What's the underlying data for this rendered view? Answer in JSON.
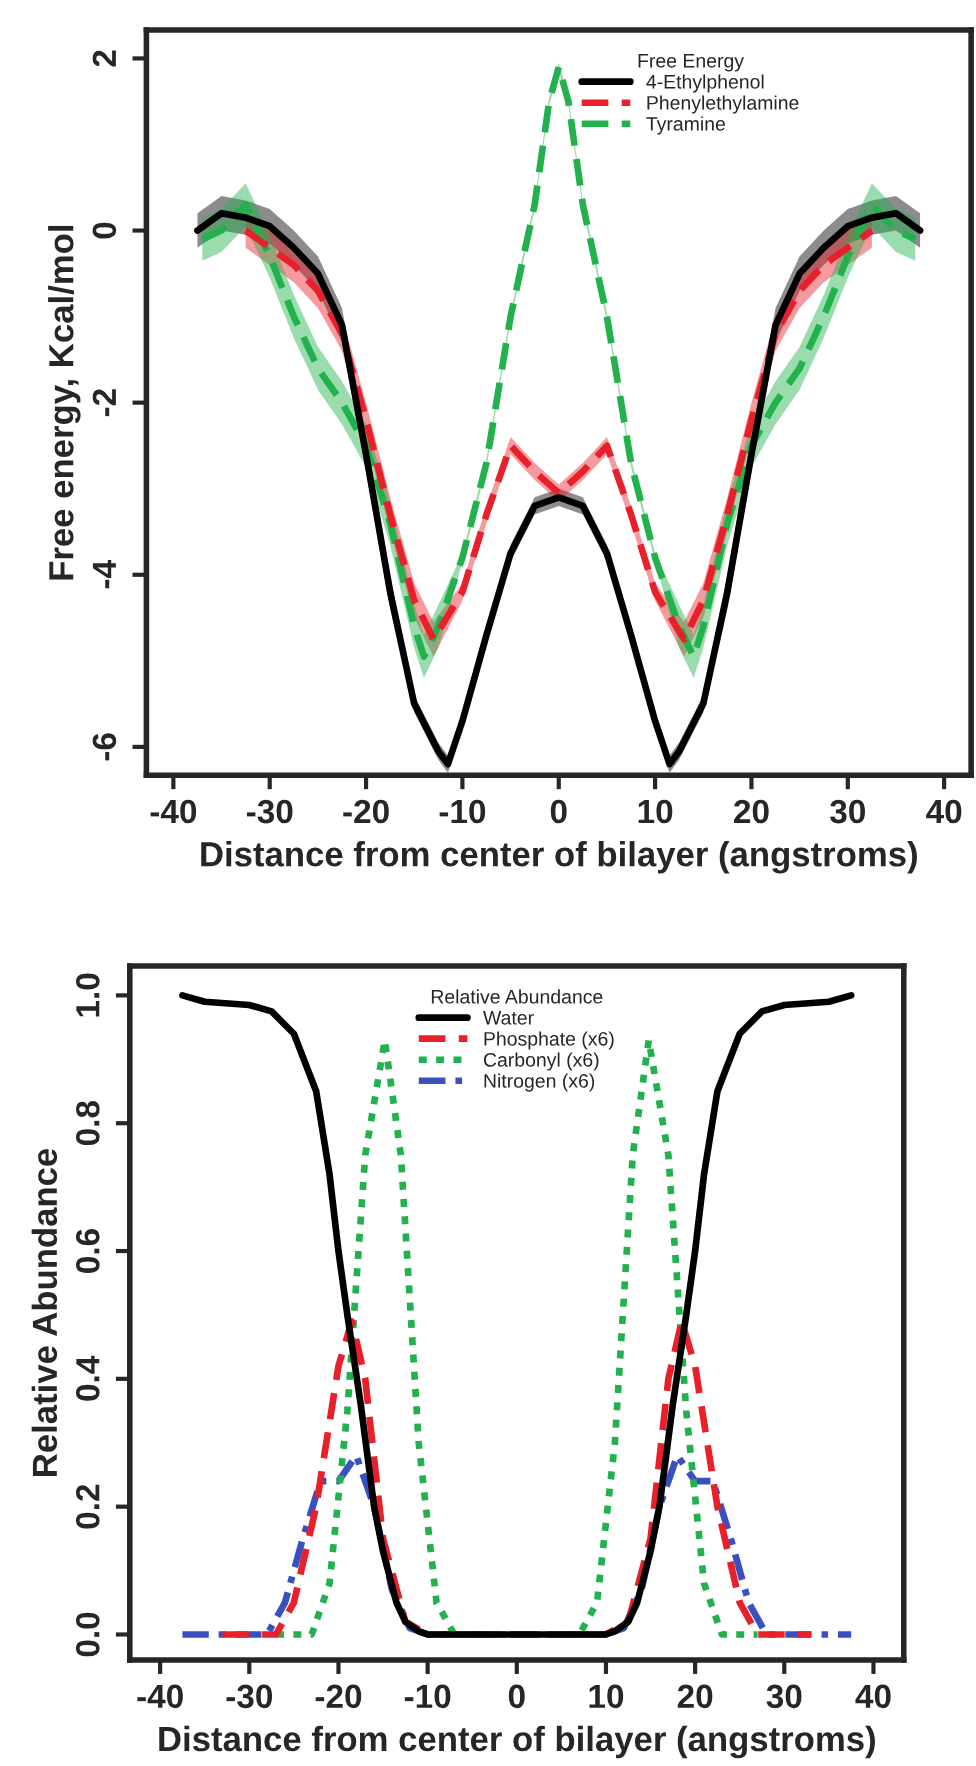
{
  "chart_data": [
    {
      "type": "line",
      "xlabel": "Distance from center of bilayer (angstroms)",
      "ylabel": "Free energy, Kcal/mol",
      "legend_title": "Free Energy",
      "legend": "top right",
      "grid": false,
      "xlim": [
        -42.8,
        42.8
      ],
      "xticks": [
        -40,
        -30,
        -20,
        -10,
        0,
        10,
        20,
        30,
        40
      ],
      "ylim": [
        -6.33,
        2.33
      ],
      "yticks": [
        -6,
        -4,
        -2,
        0,
        2
      ],
      "series": [
        {
          "name": "4-Ethylphenol",
          "color": "#000000",
          "line_style": "solid",
          "x": [
            -37.5,
            -35,
            -32.5,
            -30,
            -27.5,
            -25,
            -22.5,
            -20,
            -17.5,
            -15,
            -12.5,
            -11.5,
            -10,
            -7.5,
            -5,
            -2.5,
            0,
            2.5,
            5,
            7.5,
            10,
            11.5,
            12.5,
            15,
            17.5,
            20,
            22.5,
            25,
            27.5,
            30,
            32.5,
            35,
            37.5
          ],
          "values": [
            0,
            0.2,
            0.15,
            0.05,
            -0.2,
            -0.5,
            -1.1,
            -2.6,
            -4.2,
            -5.5,
            -6.05,
            -6.2,
            -5.7,
            -4.7,
            -3.75,
            -3.2,
            -3.1,
            -3.2,
            -3.75,
            -4.7,
            -5.7,
            -6.2,
            -6.05,
            -5.5,
            -4.2,
            -2.6,
            -1.1,
            -0.5,
            -0.2,
            0.05,
            0.15,
            0.2,
            0
          ],
          "lower": [
            -0.2,
            0.0,
            -0.05,
            -0.15,
            -0.4,
            -0.7,
            -1.3,
            -2.8,
            -4.4,
            -5.6,
            -6.15,
            -6.3,
            -5.8,
            -4.8,
            -3.85,
            -3.3,
            -3.2,
            -3.3,
            -3.85,
            -4.8,
            -5.8,
            -6.3,
            -6.15,
            -5.6,
            -4.4,
            -2.8,
            -1.3,
            -0.7,
            -0.4,
            -0.15,
            -0.05,
            0.0,
            -0.2
          ],
          "upper": [
            0.2,
            0.4,
            0.35,
            0.25,
            0.0,
            -0.3,
            -0.9,
            -2.4,
            -4.0,
            -5.4,
            -5.95,
            -6.1,
            -5.6,
            -4.6,
            -3.65,
            -3.1,
            -3.0,
            -3.1,
            -3.65,
            -4.6,
            -5.6,
            -6.1,
            -5.95,
            -5.4,
            -4.0,
            -2.4,
            -0.9,
            -0.3,
            0.0,
            0.25,
            0.35,
            0.4,
            0.2
          ]
        },
        {
          "name": "Phenylethylamine",
          "color": "#e8202a",
          "line_style": "dashed",
          "x": [
            -32.5,
            -30,
            -27.5,
            -25,
            -22.5,
            -20,
            -17.5,
            -15,
            -13,
            -10,
            -7.5,
            -5,
            -2.5,
            0,
            2.5,
            5,
            7.5,
            10,
            13,
            15,
            17.5,
            20,
            22.5,
            25,
            27.5,
            30,
            32.5
          ],
          "values": [
            0,
            -0.2,
            -0.4,
            -0.7,
            -1.2,
            -2.2,
            -3.3,
            -4.3,
            -4.75,
            -4.2,
            -3.3,
            -2.5,
            -2.8,
            -3.05,
            -2.8,
            -2.5,
            -3.3,
            -4.2,
            -4.75,
            -4.3,
            -3.3,
            -2.2,
            -1.2,
            -0.7,
            -0.4,
            -0.2,
            0
          ],
          "lower": [
            -0.2,
            -0.4,
            -0.6,
            -0.9,
            -1.4,
            -2.4,
            -3.5,
            -4.5,
            -4.95,
            -4.3,
            -3.4,
            -2.6,
            -2.9,
            -3.15,
            -2.9,
            -2.6,
            -3.4,
            -4.3,
            -4.95,
            -4.5,
            -3.5,
            -2.4,
            -1.4,
            -0.9,
            -0.6,
            -0.4,
            -0.2
          ],
          "upper": [
            0.2,
            0.0,
            -0.2,
            -0.5,
            -1.0,
            -2.0,
            -3.1,
            -4.1,
            -4.55,
            -4.1,
            -3.2,
            -2.4,
            -2.7,
            -2.95,
            -2.7,
            -2.4,
            -3.2,
            -4.1,
            -4.55,
            -4.1,
            -3.1,
            -2.0,
            -1.0,
            -0.5,
            -0.2,
            0.0,
            0.2
          ]
        },
        {
          "name": "Tyramine",
          "color": "#22b14c",
          "line_style": "dashed",
          "x": [
            -37,
            -35,
            -32.5,
            -30,
            -27.5,
            -25,
            -22.5,
            -20,
            -17.5,
            -15,
            -14,
            -12.5,
            -10,
            -7.5,
            -5,
            -2.5,
            -1,
            0,
            1,
            2.5,
            5,
            7.5,
            10,
            12.5,
            14,
            15,
            17.5,
            20,
            22.5,
            25,
            27.5,
            30,
            32.5,
            35,
            37
          ],
          "values": [
            -0.1,
            0.0,
            0.3,
            -0.3,
            -1.0,
            -1.6,
            -2.0,
            -2.5,
            -3.4,
            -4.6,
            -4.95,
            -4.6,
            -3.8,
            -2.7,
            -1.0,
            0.3,
            1.5,
            1.9,
            1.5,
            0.3,
            -1.0,
            -2.7,
            -3.8,
            -4.6,
            -4.95,
            -4.6,
            -3.4,
            -2.5,
            -2.0,
            -1.6,
            -1.0,
            -0.3,
            0.3,
            0.0,
            -0.1
          ],
          "lower": [
            -0.35,
            -0.25,
            0.05,
            -0.55,
            -1.25,
            -1.85,
            -2.25,
            -2.75,
            -3.65,
            -4.85,
            -5.2,
            -4.85,
            -3.85,
            -2.75,
            -1.05,
            0.25,
            1.45,
            1.85,
            1.45,
            0.25,
            -1.05,
            -2.75,
            -3.85,
            -4.85,
            -5.2,
            -4.85,
            -3.65,
            -2.75,
            -2.25,
            -1.85,
            -1.25,
            -0.55,
            0.05,
            -0.25,
            -0.35
          ],
          "upper": [
            0.15,
            0.25,
            0.55,
            -0.05,
            -0.75,
            -1.35,
            -1.75,
            -2.25,
            -3.15,
            -4.35,
            -4.7,
            -4.35,
            -3.75,
            -2.65,
            -0.95,
            0.35,
            1.55,
            1.95,
            1.55,
            0.35,
            -0.95,
            -2.65,
            -3.75,
            -4.35,
            -4.7,
            -4.35,
            -3.15,
            -2.25,
            -1.75,
            -1.35,
            -0.75,
            -0.05,
            0.55,
            0.25,
            0.15
          ]
        }
      ]
    },
    {
      "type": "line",
      "xlabel": "Distance from center of bilayer (angstroms)",
      "ylabel": "Relative Abundance",
      "legend_title": "Relative Abundance",
      "legend": "top",
      "grid": false,
      "xlim": [
        -43.4,
        43.4
      ],
      "xticks": [
        -40,
        -30,
        -20,
        -10,
        0,
        10,
        20,
        30,
        40
      ],
      "ylim": [
        -0.04,
        1.046
      ],
      "yticks": [
        {
          "value": 0,
          "label": "0.0"
        },
        {
          "value": 0.2,
          "label": "0.2"
        },
        {
          "value": 0.4,
          "label": "0.4"
        },
        {
          "value": 0.6,
          "label": "0.6"
        },
        {
          "value": 0.8,
          "label": "0.8"
        },
        {
          "value": 1,
          "label": "1.0"
        }
      ],
      "series": [
        {
          "name": "Water",
          "color": "#000000",
          "line_style": "solid",
          "x": [
            -37.5,
            -35,
            -30,
            -27.5,
            -25,
            -22.5,
            -21,
            -20,
            -19,
            -17.5,
            -16,
            -15,
            -13.5,
            -12.5,
            -11,
            -10,
            0,
            10,
            11,
            12.5,
            13.5,
            15,
            16,
            17.5,
            19,
            20,
            21,
            22.5,
            25,
            27.5,
            30,
            35,
            37.5
          ],
          "values": [
            1.0,
            0.99,
            0.985,
            0.975,
            0.94,
            0.85,
            0.72,
            0.6,
            0.5,
            0.36,
            0.2,
            0.13,
            0.05,
            0.02,
            0.005,
            0,
            0,
            0,
            0.005,
            0.02,
            0.05,
            0.13,
            0.2,
            0.36,
            0.5,
            0.6,
            0.72,
            0.85,
            0.94,
            0.975,
            0.985,
            0.99,
            1.0
          ]
        },
        {
          "name": "Phosphate (x6)",
          "color": "#e8202a",
          "line_style": "dashed",
          "x": [
            -33,
            -27,
            -25,
            -22.5,
            -20,
            -18.5,
            -17,
            -15,
            -12.5,
            -10,
            10,
            12.5,
            15,
            17,
            18.5,
            20,
            22.5,
            25,
            27,
            33
          ],
          "values": [
            0,
            0,
            0.05,
            0.2,
            0.42,
            0.49,
            0.4,
            0.15,
            0.02,
            0,
            0,
            0.02,
            0.15,
            0.4,
            0.49,
            0.42,
            0.2,
            0.05,
            0,
            0
          ]
        },
        {
          "name": "Carbonyl (x6)",
          "color": "#22b14c",
          "line_style": "dotted",
          "x": [
            -27,
            -23,
            -21,
            -19,
            -17,
            -14.8,
            -13,
            -11,
            -9,
            -7,
            7,
            9,
            11,
            13,
            14.8,
            17,
            19,
            21,
            23,
            27
          ],
          "values": [
            0,
            0,
            0.08,
            0.35,
            0.75,
            0.93,
            0.75,
            0.3,
            0.05,
            0,
            0,
            0.05,
            0.3,
            0.75,
            0.93,
            0.75,
            0.35,
            0.08,
            0,
            0
          ]
        },
        {
          "name": "Nitrogen (x6)",
          "color": "#3a4fc0",
          "line_style": "dashdot",
          "x": [
            -37.5,
            -28,
            -26,
            -24,
            -22,
            -20,
            -18,
            -16,
            -14,
            -12,
            -10,
            10,
            12,
            14,
            16,
            18,
            20,
            22,
            24,
            26,
            28,
            37.5
          ],
          "values": [
            0,
            0,
            0.05,
            0.15,
            0.24,
            0.24,
            0.28,
            0.2,
            0.07,
            0.01,
            0,
            0,
            0.01,
            0.07,
            0.2,
            0.28,
            0.24,
            0.24,
            0.15,
            0.05,
            0,
            0
          ]
        }
      ]
    }
  ]
}
